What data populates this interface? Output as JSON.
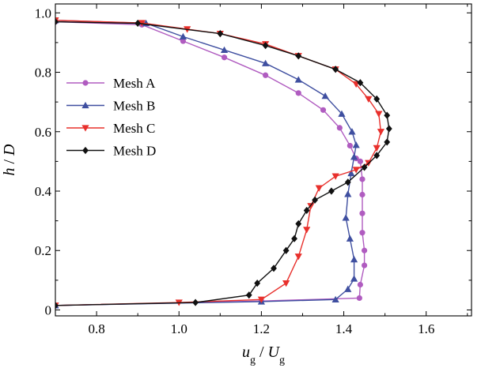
{
  "chart_data": {
    "type": "line",
    "title": "",
    "xlabel": {
      "base": "u",
      "sub": "g",
      "sep": " / ",
      "base2": "U",
      "sub2": "g"
    },
    "ylabel": {
      "base": "h",
      "sep": " / ",
      "base2": "D"
    },
    "xlim": [
      0.7,
      1.71
    ],
    "ylim": [
      -0.02,
      1.03
    ],
    "xticks": [
      0.8,
      1.0,
      1.2,
      1.4,
      1.6
    ],
    "yticks": [
      0.0,
      0.2,
      0.4,
      0.6,
      0.8,
      1.0
    ],
    "xtick_labels": [
      "0.8",
      "1.0",
      "1.2",
      "1.4",
      "1.6"
    ],
    "ytick_labels": [
      "0",
      "0.2",
      "0.4",
      "0.6",
      "0.8",
      "1.0"
    ],
    "grid": false,
    "legend_position": "left",
    "series": [
      {
        "name": "Mesh A",
        "color": "#b05cc0",
        "marker": "circle",
        "points": [
          [
            0.7,
            0.97
          ],
          [
            0.91,
            0.96
          ],
          [
            1.01,
            0.905
          ],
          [
            1.11,
            0.85
          ],
          [
            1.21,
            0.79
          ],
          [
            1.29,
            0.73
          ],
          [
            1.35,
            0.673
          ],
          [
            1.39,
            0.613
          ],
          [
            1.415,
            0.553
          ],
          [
            1.43,
            0.51
          ],
          [
            1.44,
            0.5
          ],
          [
            1.445,
            0.44
          ],
          [
            1.445,
            0.388
          ],
          [
            1.445,
            0.325
          ],
          [
            1.445,
            0.26
          ],
          [
            1.45,
            0.2
          ],
          [
            1.45,
            0.15
          ],
          [
            1.44,
            0.085
          ],
          [
            1.438,
            0.04
          ],
          [
            1.2,
            0.03
          ],
          [
            0.7,
            0.015
          ]
        ]
      },
      {
        "name": "Mesh B",
        "color": "#3f4fa0",
        "marker": "triangle-up",
        "points": [
          [
            0.7,
            0.975
          ],
          [
            0.92,
            0.965
          ],
          [
            1.01,
            0.92
          ],
          [
            1.11,
            0.875
          ],
          [
            1.21,
            0.83
          ],
          [
            1.29,
            0.775
          ],
          [
            1.355,
            0.72
          ],
          [
            1.395,
            0.66
          ],
          [
            1.42,
            0.6
          ],
          [
            1.43,
            0.555
          ],
          [
            1.425,
            0.515
          ],
          [
            1.418,
            0.46
          ],
          [
            1.41,
            0.39
          ],
          [
            1.405,
            0.31
          ],
          [
            1.415,
            0.24
          ],
          [
            1.425,
            0.17
          ],
          [
            1.425,
            0.105
          ],
          [
            1.41,
            0.07
          ],
          [
            1.38,
            0.035
          ],
          [
            1.2,
            0.028
          ],
          [
            0.7,
            0.015
          ]
        ]
      },
      {
        "name": "Mesh C",
        "color": "#e8302c",
        "marker": "triangle-down",
        "points": [
          [
            0.7,
            0.975
          ],
          [
            0.91,
            0.966
          ],
          [
            1.02,
            0.945
          ],
          [
            1.1,
            0.93
          ],
          [
            1.21,
            0.895
          ],
          [
            1.29,
            0.855
          ],
          [
            1.38,
            0.81
          ],
          [
            1.43,
            0.76
          ],
          [
            1.46,
            0.71
          ],
          [
            1.485,
            0.66
          ],
          [
            1.49,
            0.6
          ],
          [
            1.48,
            0.545
          ],
          [
            1.46,
            0.495
          ],
          [
            1.43,
            0.472
          ],
          [
            1.38,
            0.45
          ],
          [
            1.34,
            0.41
          ],
          [
            1.32,
            0.35
          ],
          [
            1.31,
            0.27
          ],
          [
            1.29,
            0.18
          ],
          [
            1.26,
            0.09
          ],
          [
            1.2,
            0.035
          ],
          [
            1.0,
            0.025
          ],
          [
            0.7,
            0.015
          ]
        ]
      },
      {
        "name": "Mesh D",
        "color": "#111111",
        "marker": "diamond",
        "points": [
          [
            0.7,
            0.97
          ],
          [
            0.9,
            0.965
          ],
          [
            1.1,
            0.93
          ],
          [
            1.21,
            0.89
          ],
          [
            1.29,
            0.855
          ],
          [
            1.38,
            0.81
          ],
          [
            1.44,
            0.765
          ],
          [
            1.48,
            0.71
          ],
          [
            1.505,
            0.655
          ],
          [
            1.51,
            0.61
          ],
          [
            1.505,
            0.565
          ],
          [
            1.48,
            0.52
          ],
          [
            1.45,
            0.48
          ],
          [
            1.41,
            0.43
          ],
          [
            1.37,
            0.4
          ],
          [
            1.33,
            0.37
          ],
          [
            1.31,
            0.335
          ],
          [
            1.29,
            0.29
          ],
          [
            1.28,
            0.24
          ],
          [
            1.26,
            0.2
          ],
          [
            1.23,
            0.14
          ],
          [
            1.19,
            0.09
          ],
          [
            1.17,
            0.05
          ],
          [
            1.04,
            0.025
          ],
          [
            0.7,
            0.015
          ]
        ]
      }
    ]
  }
}
